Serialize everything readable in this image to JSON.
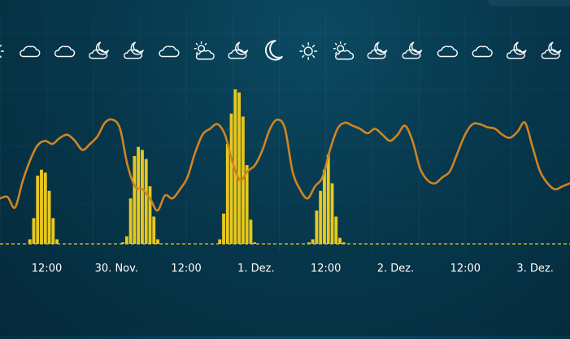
{
  "chart_data": {
    "type": "bar+line",
    "x_ticks": [
      "12:00",
      "30. Nov.",
      "12:00",
      "1. Dez.",
      "12:00",
      "2. Dez.",
      "12:00",
      "3. Dez."
    ],
    "weather_icons": [
      "sun-icon",
      "cloud-icon",
      "cloud-icon",
      "cloud-moon-icon",
      "cloud-moon-icon",
      "cloud-icon",
      "sun-cloud-icon",
      "cloud-moon-icon",
      "moon-icon",
      "sun-icon",
      "sun-cloud-icon",
      "cloud-moon-icon",
      "cloud-moon-icon",
      "cloud-icon",
      "cloud-icon",
      "cloud-moon-icon",
      "cloud-moon-icon"
    ],
    "bar_series": {
      "color": "#e8c81e",
      "values": [
        0,
        3,
        17,
        45,
        49,
        47,
        35,
        17,
        3,
        0,
        0,
        0,
        0,
        0,
        0,
        0,
        0,
        0,
        0,
        0,
        0,
        0,
        0,
        0,
        0,
        1,
        5,
        30,
        58,
        64,
        62,
        56,
        38,
        18,
        3,
        0,
        0,
        0,
        0,
        0,
        0,
        0,
        0,
        0,
        0,
        0,
        0,
        0,
        0,
        0,
        3,
        20,
        66,
        86,
        102,
        100,
        84,
        52,
        16,
        1,
        0,
        0,
        0,
        0,
        0,
        0,
        0,
        0,
        0,
        0,
        0,
        0,
        0,
        1,
        3,
        22,
        35,
        49,
        59,
        40,
        18,
        4,
        1,
        0
      ]
    },
    "line_series": {
      "color": "#d28420",
      "values": [
        30,
        31,
        24,
        41,
        55,
        65,
        68,
        66,
        70,
        72,
        68,
        62,
        66,
        71,
        80,
        82,
        76,
        52,
        38,
        36,
        30,
        22,
        32,
        30,
        36,
        44,
        60,
        72,
        76,
        79,
        72,
        54,
        42,
        48,
        52,
        62,
        76,
        82,
        76,
        48,
        36,
        30,
        38,
        44,
        62,
        76,
        80,
        78,
        76,
        73,
        76,
        72,
        68,
        72,
        78,
        68,
        50,
        42,
        40,
        44,
        48,
        60,
        72,
        79,
        79,
        77,
        76,
        72,
        70,
        74,
        80,
        64,
        48,
        40,
        36,
        38,
        40
      ]
    },
    "baseline_color": "#e8c81e",
    "grid": true
  }
}
